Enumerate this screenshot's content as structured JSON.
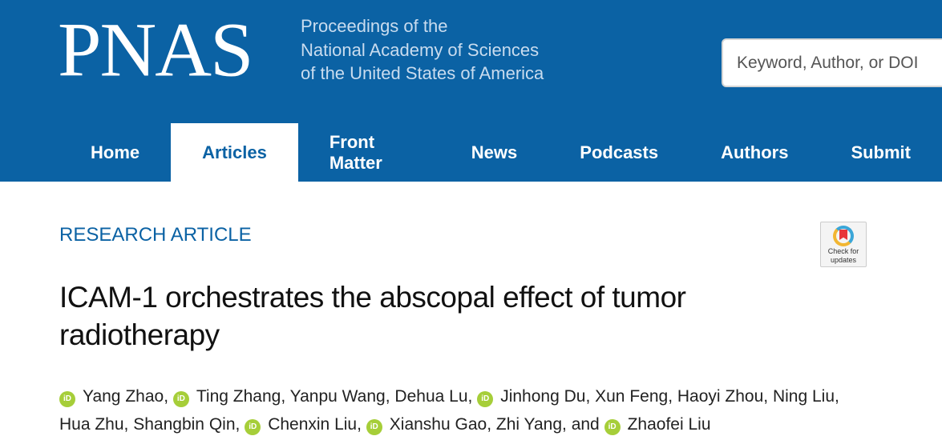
{
  "header": {
    "logo": "PNAS",
    "tagline": [
      "Proceedings of the",
      "National Academy of Sciences",
      "of the United States of America"
    ],
    "search_placeholder": "Keyword, Author, or DOI",
    "brand_color": "#0b62a4"
  },
  "nav": [
    {
      "label": "Home"
    },
    {
      "label": "Articles",
      "active": true
    },
    {
      "label": "Front Matter"
    },
    {
      "label": "News"
    },
    {
      "label": "Podcasts"
    },
    {
      "label": "Authors"
    },
    {
      "label": "Submit"
    }
  ],
  "article": {
    "kicker": "RESEARCH ARTICLE",
    "title": "ICAM-1 orchestrates the abscopal effect of tumor radiotherapy",
    "badge": [
      "Check for",
      "updates"
    ],
    "authors": [
      {
        "name": "Yang Zhao",
        "orcid": true
      },
      {
        "name": "Ting Zhang",
        "orcid": true
      },
      {
        "name": "Yanpu Wang"
      },
      {
        "name": "Dehua Lu"
      },
      {
        "name": "Jinhong Du",
        "orcid": true
      },
      {
        "name": "Xun Feng"
      },
      {
        "name": "Haoyi Zhou"
      },
      {
        "name": "Ning Liu"
      },
      {
        "name": "Hua Zhu"
      },
      {
        "name": "Shangbin Qin"
      },
      {
        "name": "Chenxin Liu",
        "orcid": true
      },
      {
        "name": "Xianshu Gao",
        "orcid": true
      },
      {
        "name": "Zhi Yang"
      },
      {
        "name": "Zhaofei Liu",
        "orcid": true
      }
    ],
    "and": "and",
    "orcid_icon": "iD"
  }
}
